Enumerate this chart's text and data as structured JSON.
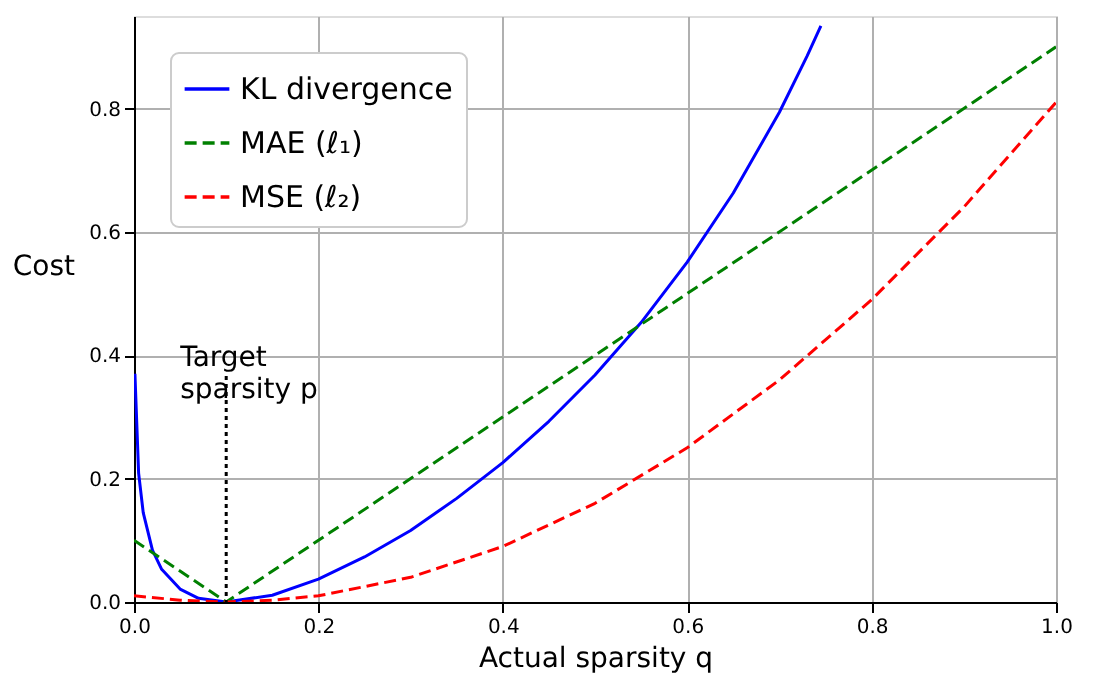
{
  "chart_data": {
    "type": "line",
    "xlabel": "Actual sparsity q",
    "ylabel": "Cost",
    "xlim": [
      0,
      1
    ],
    "ylim": [
      0,
      0.95
    ],
    "xticks": [
      {
        "value": 0,
        "label": "0.0"
      },
      0.2,
      0.4,
      0.6,
      0.8,
      {
        "value": 1,
        "label": "1.0"
      }
    ],
    "yticks": [
      {
        "value": 0,
        "label": "0.0"
      },
      0.2,
      0.4,
      0.6,
      0.8
    ],
    "grid": true,
    "legend": "top left",
    "marker": "none",
    "series": [
      {
        "name": "KL divergence",
        "color": "#0000ff",
        "line_style": "solid",
        "x": [
          0.001,
          0.005,
          0.01,
          0.02,
          0.03,
          0.05,
          0.07,
          0.1,
          0.15,
          0.2,
          0.25,
          0.3,
          0.35,
          0.4,
          0.45,
          0.5,
          0.55,
          0.6,
          0.65,
          0.7,
          0.73,
          0.745
        ],
        "values": [
          0.37,
          0.209,
          0.145,
          0.084,
          0.053,
          0.021,
          0.006,
          0,
          0.011,
          0.037,
          0.073,
          0.116,
          0.168,
          0.226,
          0.293,
          0.368,
          0.453,
          0.551,
          0.663,
          0.794,
          0.885,
          0.934
        ]
      },
      {
        "name": "MAE (ℓ₁)",
        "color": "#008000",
        "line_style": "dashed",
        "x": [
          0,
          0.1,
          1
        ],
        "values": [
          0.1,
          0,
          0.9
        ]
      },
      {
        "name": "MSE (ℓ₂)",
        "color": "#ff0000",
        "line_style": "dashed",
        "x": [
          0,
          0.05,
          0.1,
          0.15,
          0.2,
          0.3,
          0.4,
          0.5,
          0.6,
          0.7,
          0.8,
          0.9,
          1.0
        ],
        "values": [
          0.01,
          0.003,
          0,
          0.003,
          0.01,
          0.04,
          0.09,
          0.16,
          0.25,
          0.36,
          0.49,
          0.64,
          0.81
        ]
      }
    ],
    "ref_lines": [
      {
        "axis": "x",
        "value": 0.1,
        "label": "Target\nsparsity p",
        "line_style": "dotted",
        "color": "#000000"
      }
    ]
  }
}
